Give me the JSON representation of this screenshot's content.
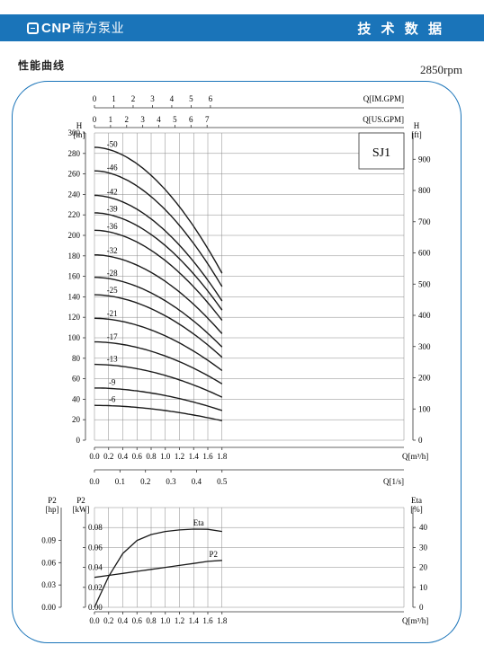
{
  "header": {
    "logo_text": "CNP",
    "logo_cn": "南方泵业",
    "right_title": "技 术 数 据"
  },
  "section_title": "性能曲线",
  "rpm_label": "2850rpm",
  "model_label": "SJ1",
  "colors": {
    "header_bg": "#1a74b9",
    "frame": "#1a74b9",
    "curve": "#1a1a1a",
    "grid": "#888888"
  },
  "chart_data": [
    {
      "type": "line",
      "name": "head-chart",
      "x_label": "Q[m³/h]",
      "xlim": [
        0,
        2.0
      ],
      "x_ticks": [
        "0.0",
        "0.2",
        "0.4",
        "0.6",
        "0.8",
        "1.0",
        "1.2",
        "1.4",
        "1.6",
        "1.8"
      ],
      "y_left_label": "H\n[m]",
      "ylim": [
        0,
        300
      ],
      "y_left_ticks": [
        "0",
        "20",
        "40",
        "60",
        "80",
        "100",
        "120",
        "140",
        "160",
        "180",
        "200",
        "220",
        "240",
        "260",
        "280",
        "300"
      ],
      "y_right_label": "H\n[ft]",
      "y_right_ticks": [
        "0",
        "100",
        "200",
        "300",
        "400",
        "500",
        "600",
        "700",
        "800",
        "900"
      ],
      "top_axis_im_label": "Q[IM.GPM]",
      "top_axis_im_ticks": [
        "0",
        "1",
        "2",
        "3",
        "4",
        "5",
        "6"
      ],
      "top_axis_us_label": "Q[US.GPM]",
      "top_axis_us_ticks": [
        "0",
        "1",
        "2",
        "3",
        "4",
        "5",
        "6",
        "7"
      ],
      "bottom_axis_ls_label": "Q[1/s]",
      "bottom_axis_ls_ticks": [
        "0.0",
        "0.1",
        "0.2",
        "0.3",
        "0.4",
        "0.5"
      ],
      "series": [
        {
          "name": "-50",
          "h0": 286,
          "h18": 163
        },
        {
          "name": "-46",
          "h0": 263,
          "h18": 150
        },
        {
          "name": "-42",
          "h0": 239,
          "h18": 136
        },
        {
          "name": "-39",
          "h0": 222,
          "h18": 127
        },
        {
          "name": "-36",
          "h0": 205,
          "h18": 117
        },
        {
          "name": "-32",
          "h0": 181,
          "h18": 104
        },
        {
          "name": "-28",
          "h0": 159,
          "h18": 91
        },
        {
          "name": "-25",
          "h0": 142,
          "h18": 81
        },
        {
          "name": "-21",
          "h0": 119,
          "h18": 68
        },
        {
          "name": "-17",
          "h0": 96,
          "h18": 55
        },
        {
          "name": "-13",
          "h0": 74,
          "h18": 42
        },
        {
          "name": "-9",
          "h0": 51,
          "h18": 29
        },
        {
          "name": "-6",
          "h0": 34,
          "h18": 19
        }
      ]
    },
    {
      "type": "line",
      "name": "power-efficiency-chart",
      "x_label": "Q[m³/h]",
      "xlim": [
        0,
        2.0
      ],
      "x_ticks": [
        "0.0",
        "0.2",
        "0.4",
        "0.6",
        "0.8",
        "1.0",
        "1.2",
        "1.4",
        "1.6",
        "1.8"
      ],
      "y_left_kw_label": "P2\n[kW]",
      "ylim": [
        0,
        0.1
      ],
      "y_left_kw_ticks": [
        "0.00",
        "0.02",
        "0.04",
        "0.06",
        "0.08"
      ],
      "y_left_hp_label": "P2\n[hp]",
      "y_left_hp_ticks": [
        "0.00",
        "0.03",
        "0.06",
        "0.09"
      ],
      "y_right_label": "Eta\n[%]",
      "y_right_ticks": [
        "0",
        "10",
        "20",
        "30",
        "40"
      ],
      "series": [
        {
          "name": "Eta",
          "x": [
            0,
            0.2,
            0.4,
            0.6,
            0.8,
            1.0,
            1.2,
            1.4,
            1.6,
            1.8
          ],
          "y": [
            0,
            15.5,
            27,
            33.5,
            36.5,
            38,
            38.8,
            39.2,
            39.1,
            38
          ]
        },
        {
          "name": "P2",
          "x": [
            0,
            0.2,
            0.4,
            0.6,
            0.8,
            1.0,
            1.2,
            1.4,
            1.6,
            1.8
          ],
          "y": [
            0.03,
            0.032,
            0.034,
            0.036,
            0.038,
            0.04,
            0.042,
            0.044,
            0.046,
            0.047
          ]
        }
      ]
    }
  ]
}
